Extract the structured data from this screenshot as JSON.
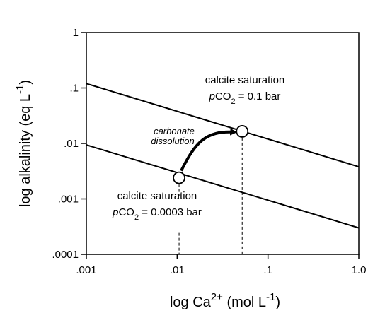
{
  "chart_data": {
    "type": "line",
    "x_scale": "log",
    "y_scale": "log",
    "xlim": [
      0.001,
      1.0
    ],
    "ylim": [
      0.0001,
      1
    ],
    "x_ticks": [
      0.001,
      0.01,
      0.1,
      1.0
    ],
    "x_tick_labels": [
      ".001",
      ".01",
      ".1",
      "1.0"
    ],
    "y_ticks": [
      0.0001,
      0.001,
      0.01,
      0.1,
      1
    ],
    "y_tick_labels": [
      ".0001",
      ".001",
      ".01",
      ".1",
      "1"
    ],
    "xlabel": {
      "prefix": "log Ca",
      "sup": "2+",
      "mid": " (mol L",
      "sup2": "-1",
      "suffix": ")"
    },
    "ylabel": {
      "prefix": "log alkalinity (eq L",
      "sup": "-1",
      "suffix": ")"
    },
    "grid": false,
    "series": [
      {
        "x": [
          0.001,
          1.0
        ],
        "y": [
          0.12,
          0.0038
        ]
      },
      {
        "x": [
          0.001,
          1.0
        ],
        "y": [
          0.0094,
          0.0003
        ]
      }
    ],
    "points": [
      {
        "x": 0.0105,
        "y": 0.0024
      },
      {
        "x": 0.052,
        "y": 0.0165
      }
    ],
    "annotations": {
      "upper_label": "calcite saturation",
      "upper_pco2": {
        "p": "p",
        "co": "CO",
        "sub": "2",
        "rest": " = 0.1 bar"
      },
      "lower_label": "calcite saturation",
      "lower_pco2": {
        "p": "p",
        "co": "CO",
        "sub": "2",
        "rest": " = 0.0003 bar"
      },
      "arrow_label_1": "carbonate",
      "arrow_label_2": "dissolution"
    }
  }
}
